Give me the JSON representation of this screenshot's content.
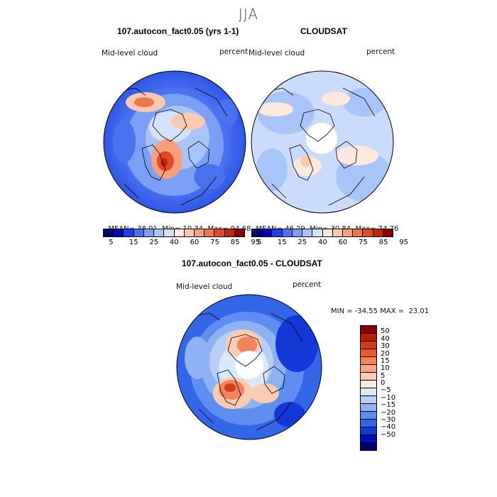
{
  "figure": {
    "title": "JJA",
    "colors": {
      "dark_blue": "#000080",
      "mid_blue": "#2e62e0",
      "light_blue": "#7aa3f2",
      "pale_blue": "#c9dcfb",
      "pale_orange": "#fbd6c2",
      "orange": "#f07a50",
      "red": "#d63a1e",
      "dark_red": "#8b0000"
    }
  },
  "panel_left": {
    "title": "107.autocon_fact0.05 (yrs 1-1)",
    "variable": "Mid-level cloud",
    "units": "percent",
    "stats": {
      "mean_label": "MEAN=",
      "mean": "38.01",
      "min_label": "Min=",
      "min": "10.34",
      "max_label": "Max=",
      "max": "94.68"
    }
  },
  "panel_right": {
    "title": "CLOUDSAT",
    "variable": "Mid-level cloud",
    "units": "percent",
    "stats": {
      "mean_label": "MEAN=",
      "mean": "46.29",
      "min_label": "Min=",
      "min": "30.84",
      "max_label": "Max=",
      "max": "74.76"
    }
  },
  "panel_diff": {
    "title": "107.autocon_fact0.05 - CLOUDSAT",
    "variable": "Mid-level cloud",
    "units": "percent",
    "minmax": "MIN = -34.55 MAX =  23.01"
  },
  "colorbar_abs": {
    "colors": [
      "#00006e",
      "#0000b4",
      "#1e3cf0",
      "#4a72f0",
      "#7a9ff5",
      "#a9c4f8",
      "#d4e3fb",
      "#fde9de",
      "#fbc9ae",
      "#f7a07e",
      "#f0744d",
      "#e04a24",
      "#c0260e",
      "#8b0000"
    ],
    "labels": [
      "5",
      "15",
      "25",
      "40",
      "60",
      "75",
      "85",
      "95"
    ]
  },
  "colorbar_diff": {
    "colors": [
      "#8b0000",
      "#b71c0a",
      "#d73a18",
      "#ea5a2a",
      "#f2835a",
      "#f6a883",
      "#fbccb1",
      "#fde9de",
      "#dce8fb",
      "#b5cff8",
      "#8fb2f4",
      "#5e8ef0",
      "#3466e8",
      "#1438d8",
      "#0010b8",
      "#00006e"
    ],
    "labels": [
      "50",
      "40",
      "30",
      "20",
      "15",
      "10",
      "5",
      "0",
      "−5",
      "−10",
      "−15",
      "−20",
      "−30",
      "−40",
      "−50"
    ]
  }
}
